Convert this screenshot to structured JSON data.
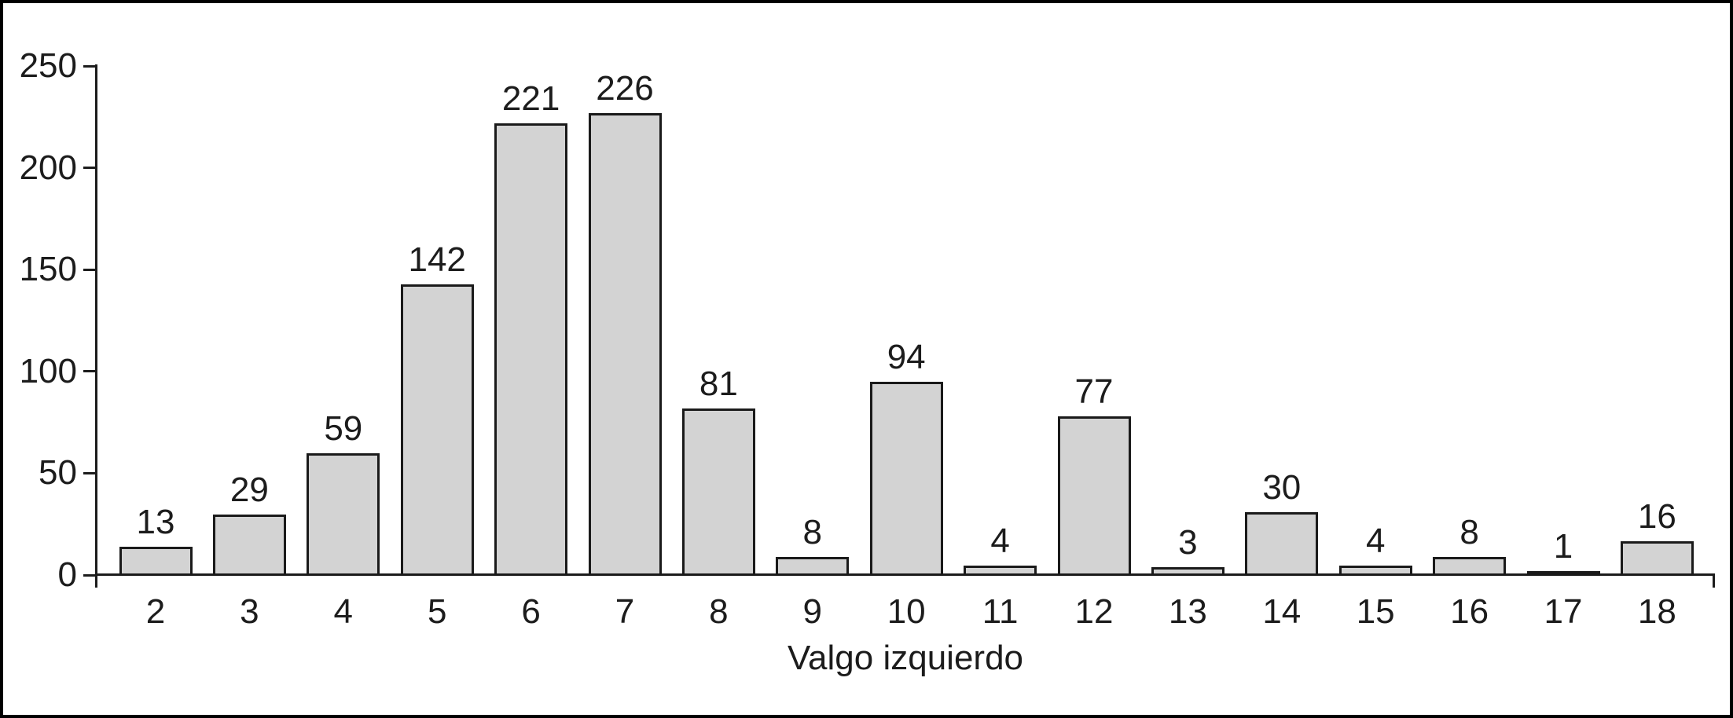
{
  "chart_data": {
    "type": "bar",
    "categories": [
      "2",
      "3",
      "4",
      "5",
      "6",
      "7",
      "8",
      "9",
      "10",
      "11",
      "12",
      "13",
      "14",
      "15",
      "16",
      "17",
      "18"
    ],
    "values": [
      13,
      29,
      59,
      142,
      221,
      226,
      81,
      8,
      94,
      4,
      77,
      3,
      30,
      4,
      8,
      1,
      16
    ],
    "title": "",
    "xlabel": "Valgo izquierdo",
    "ylabel": "",
    "ylim": [
      0,
      250
    ],
    "yticks": [
      0,
      50,
      100,
      150,
      200,
      250
    ],
    "grid": false,
    "legend": false,
    "value_labels_shown": true,
    "bar_fill_color": "#d3d3d3",
    "bar_border_color": "#1a1a1a",
    "text_color": "#1c1c1c",
    "frame_color": "#000000",
    "background_color": "#ffffff"
  }
}
